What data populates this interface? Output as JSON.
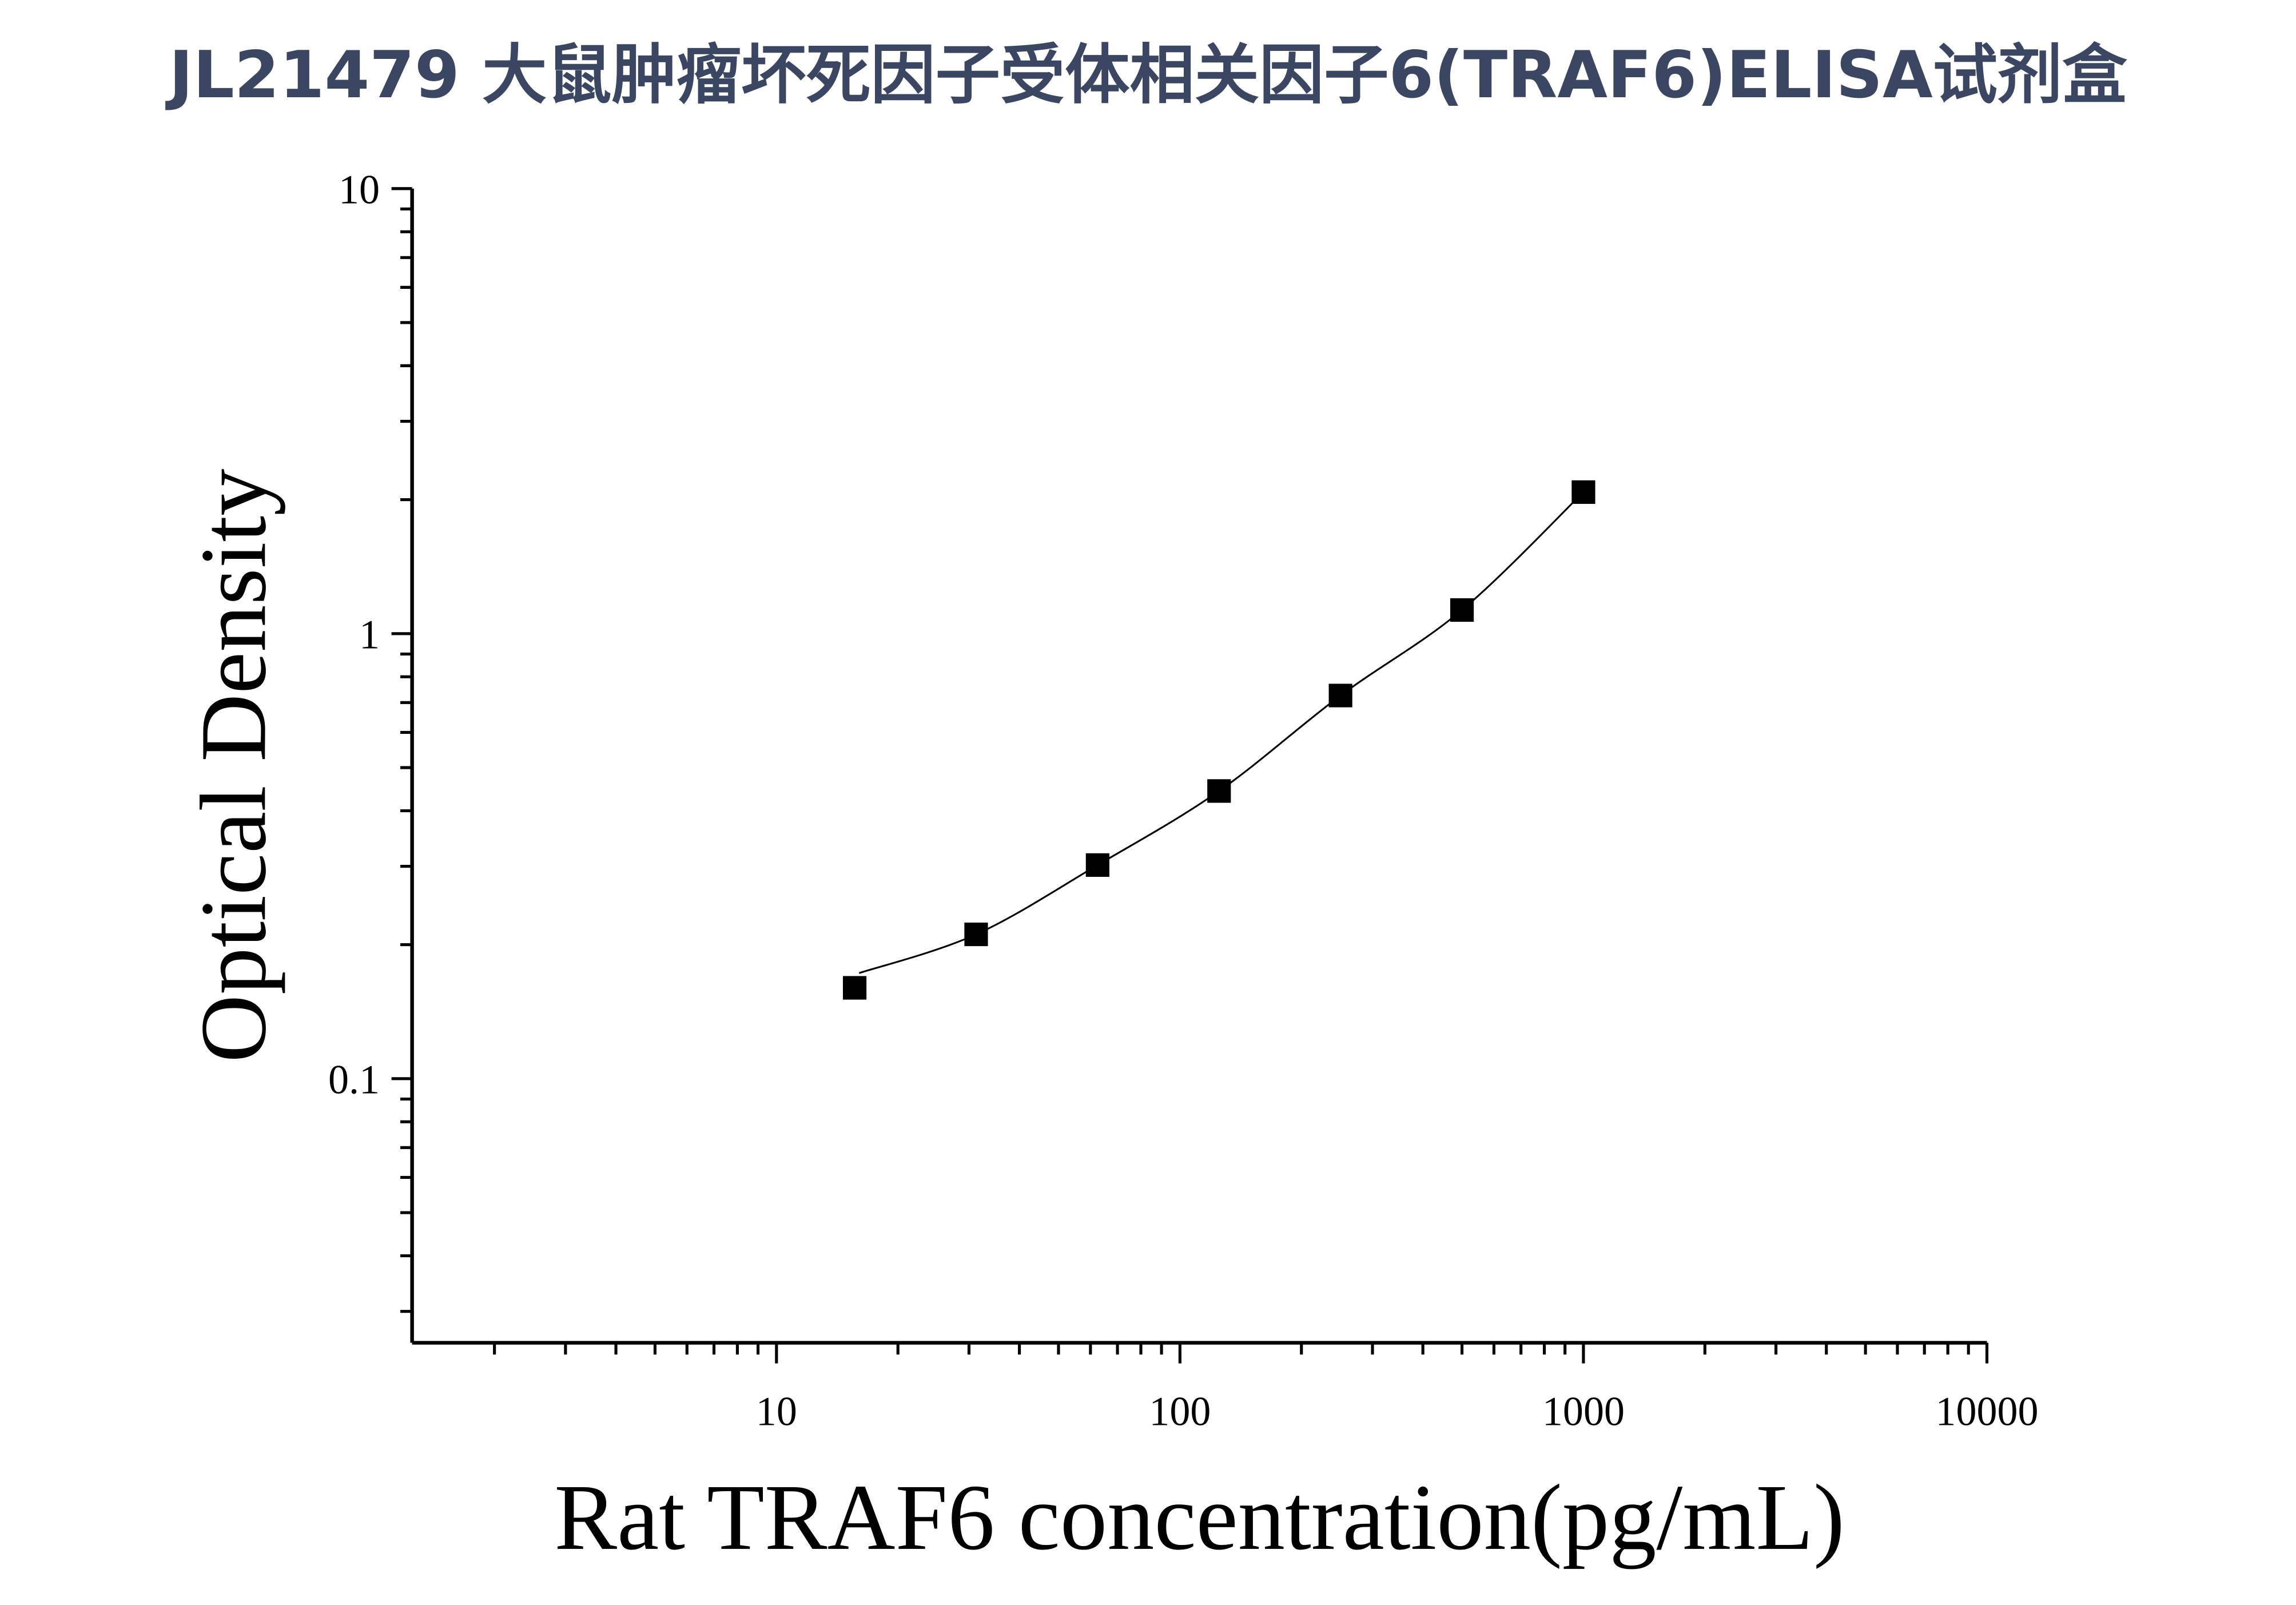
{
  "title": "JL21479 大鼠肿瘤坏死因子受体相关因子6(TRAF6)ELISA试剂盒",
  "colors": {
    "title": "#3b4762",
    "marker": "#000000",
    "axis": "#000000"
  },
  "chart_data": {
    "type": "scatter",
    "title": "JL21479 大鼠肿瘤坏死因子受体相关因子6(TRAF6)ELISA试剂盒",
    "xlabel": "Rat TRAF6 concentration(pg/mL)",
    "ylabel": "Optical Density",
    "xscale": "log",
    "yscale": "log",
    "xlim": [
      1.25,
      10000
    ],
    "ylim": [
      0.0255,
      10
    ],
    "xticks": [
      10,
      100,
      1000,
      10000
    ],
    "xtick_labels": [
      "10",
      "100",
      "1000",
      "10000"
    ],
    "yticks": [
      0.1,
      1,
      10
    ],
    "ytick_labels": [
      "0.1",
      "1",
      "10"
    ],
    "grid": false,
    "marker": "square",
    "fit_curve": true,
    "x": [
      15.625,
      31.25,
      62.5,
      125,
      250,
      500,
      1000
    ],
    "y": [
      0.16,
      0.211,
      0.302,
      0.443,
      0.726,
      1.13,
      2.08
    ]
  }
}
